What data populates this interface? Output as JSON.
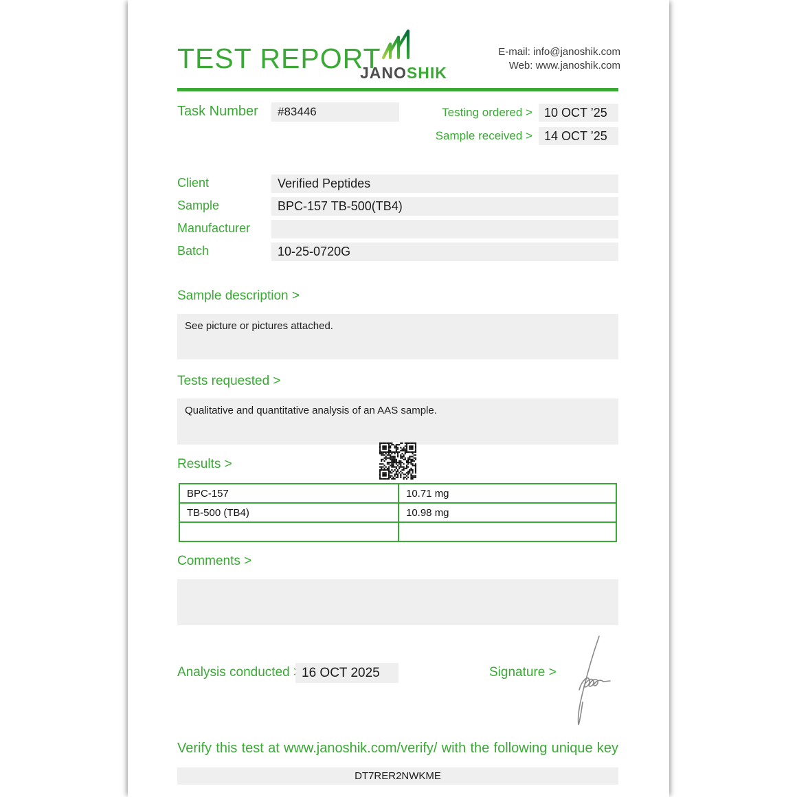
{
  "header": {
    "title": "TEST REPORT",
    "brand": {
      "name_primary": "JANO",
      "name_secondary": "SHIK"
    },
    "contact": {
      "email_line": "E-mail: info@janoshik.com",
      "web_line": "Web: www.janoshik.com"
    }
  },
  "meta": {
    "task_number_label": "Task Number",
    "task_number": "#83446",
    "testing_ordered_label": "Testing ordered  >",
    "testing_ordered": "10 OCT ’25",
    "sample_received_label": "Sample received >",
    "sample_received": "14 OCT ’25"
  },
  "details": {
    "rows": [
      {
        "label": "Client",
        "value": "Verified Peptides"
      },
      {
        "label": "Sample",
        "value": "BPC-157 TB-500(TB4)"
      },
      {
        "label": "Manufacturer",
        "value": ""
      },
      {
        "label": "Batch",
        "value": "10-25-0720G"
      }
    ]
  },
  "sections": {
    "sample_description": {
      "heading": "Sample description >",
      "text": "See picture or pictures attached."
    },
    "tests_requested": {
      "heading": "Tests requested >",
      "text": "Qualitative and quantitative analysis of an AAS sample."
    },
    "results": {
      "heading": "Results >",
      "table": {
        "rows": [
          {
            "analyte": "BPC-157",
            "amount": "10.71 mg"
          },
          {
            "analyte": "TB-500 (TB4)",
            "amount": "10.98 mg"
          },
          {
            "analyte": "",
            "amount": ""
          }
        ]
      }
    },
    "comments": {
      "heading": "Comments >",
      "text": ""
    }
  },
  "footer": {
    "analysis_conducted_label": "Analysis conducted >",
    "analysis_conducted": "16 OCT 2025",
    "signature_label": "Signature >",
    "verify_text": "Verify this test at www.janoshik.com/verify/ with the following unique key",
    "unique_key": "DT7RER2NWKME"
  },
  "colors": {
    "accent_green": "#3aa935",
    "box_gray": "#efefef",
    "text_dark": "#1c1c1c"
  }
}
